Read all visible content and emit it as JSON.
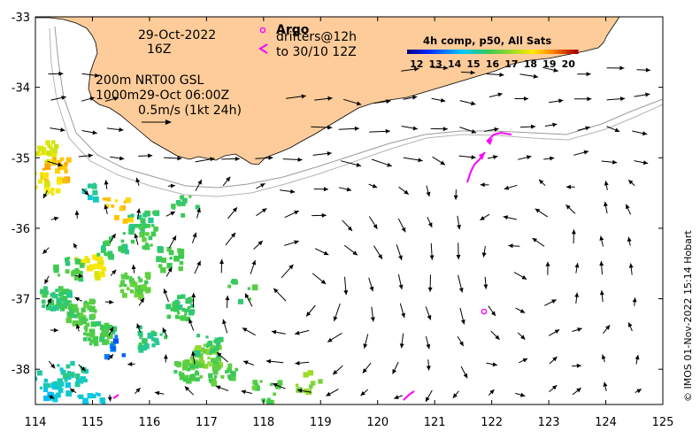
{
  "map": {
    "date_line1": "29-Oct-2022",
    "date_line2": "16Z",
    "depth_line1": "200m  NRT00 GSL",
    "depth_line2": "1000m29-Oct 06:00Z",
    "scale_label": "0.5m/s (1kt 24h)",
    "argo_label": "Argo",
    "drifters_line1": "drifters@12h",
    "drifters_line2": "to 30/10 12Z",
    "credit": "© IMOS 01-Nov-2022 15:14 Hobart"
  },
  "colorbar": {
    "title": "4h comp, p50, All Sats",
    "ticks": [
      "12",
      "13",
      "14",
      "15",
      "16",
      "17",
      "18",
      "19",
      "20"
    ],
    "min": 11.5,
    "max": 20.5
  },
  "axes": {
    "x_ticks": [
      "114",
      "115",
      "116",
      "117",
      "118",
      "119",
      "120",
      "121",
      "122",
      "123",
      "124",
      "125"
    ],
    "y_ticks": [
      "-33",
      "-34",
      "-35",
      "-36",
      "-37",
      "-38"
    ],
    "x_range": [
      114,
      125
    ],
    "y_range": [
      -38.5,
      -33
    ]
  },
  "colors": {
    "land": "#fdcc9a",
    "coast": "#000000",
    "isobath": "#9a9a9a",
    "drifter": "#ff00ff"
  }
}
